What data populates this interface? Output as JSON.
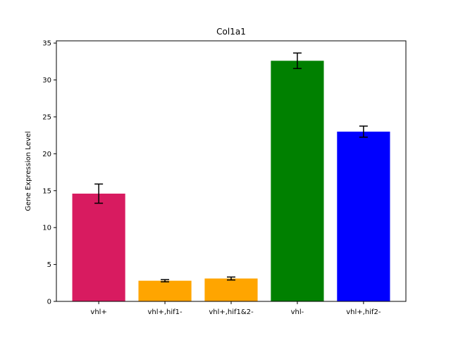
{
  "chart_data": {
    "type": "bar",
    "title": "Col1a1",
    "xlabel": "",
    "ylabel": "Gene Expression Level",
    "categories": [
      "vhl+",
      "vhl+,hif1-",
      "vhl+,hif1&2-",
      "vhl-",
      "vhl+,hif2-"
    ],
    "values": [
      14.6,
      2.8,
      3.1,
      32.6,
      23.0
    ],
    "errors": [
      1.3,
      0.15,
      0.2,
      1.05,
      0.75
    ],
    "colors": [
      "#d81b60",
      "#ffa500",
      "#ffa500",
      "#008000",
      "#0000ff"
    ],
    "ylim": [
      0,
      35.3
    ],
    "yticks": [
      0,
      5,
      10,
      15,
      20,
      25,
      30,
      35
    ],
    "grid": false,
    "legend": "none"
  }
}
